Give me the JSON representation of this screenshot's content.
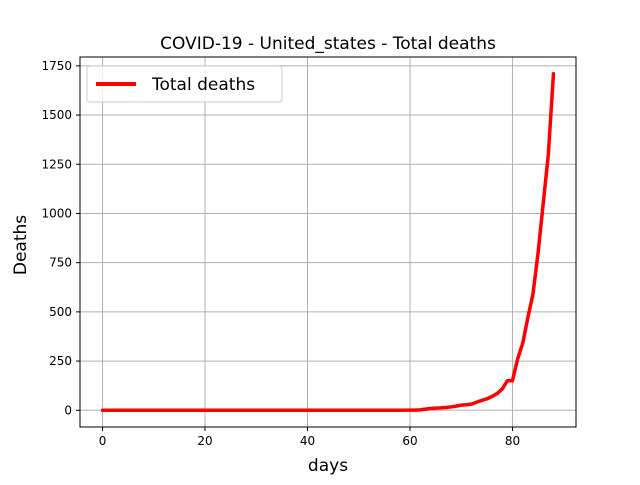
{
  "chart_data": {
    "type": "line",
    "title": "COVID-19 - United_states - Total deaths",
    "xlabel": "days",
    "ylabel": "Deaths",
    "xlim": [
      -4.4,
      92.4
    ],
    "ylim": [
      -85,
      1795
    ],
    "xticks": [
      0,
      20,
      40,
      60,
      80
    ],
    "yticks": [
      0,
      250,
      500,
      750,
      1000,
      1250,
      1500,
      1750
    ],
    "grid": true,
    "legend_position": "top-left",
    "series": [
      {
        "name": "Total deaths",
        "color": "#ff0000",
        "x": [
          0,
          10,
          20,
          30,
          40,
          50,
          55,
          58,
          60,
          61,
          62,
          63,
          64,
          65,
          66,
          67,
          68,
          69,
          70,
          71,
          72,
          73,
          74,
          75,
          76,
          77,
          78,
          79,
          80,
          81,
          82,
          83,
          84,
          85,
          86,
          87,
          88
        ],
        "y": [
          0,
          0,
          0,
          0,
          0,
          0,
          0,
          0,
          1,
          1,
          2,
          6,
          9,
          11,
          12,
          14,
          17,
          21,
          26,
          28,
          31,
          41,
          50,
          58,
          70,
          85,
          108,
          150,
          150,
          260,
          340,
          470,
          590,
          800,
          1050,
          1300,
          1710
        ]
      }
    ]
  }
}
